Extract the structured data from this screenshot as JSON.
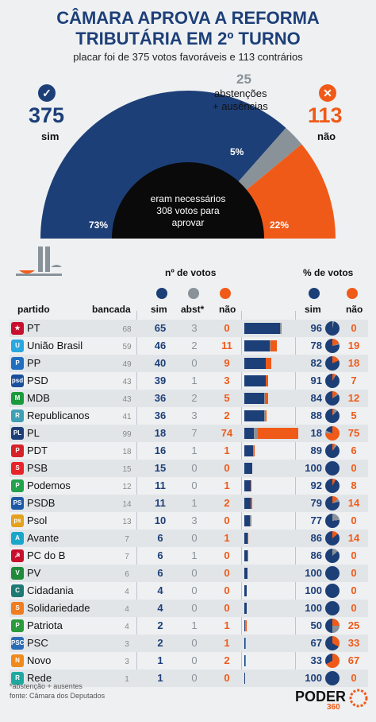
{
  "header": {
    "title_line1": "CÂMARA APROVA A REFORMA",
    "title_line2": "TRIBUTÁRIA EM 2º TURNO",
    "subtitle": "placar foi de 375 votos favoráveis e 113 contrários"
  },
  "summary": {
    "sim_count": "375",
    "sim_label": "sim",
    "nao_count": "113",
    "nao_label": "não",
    "abs_count": "25",
    "abs_label1": "abstenções",
    "abs_label2": "+ ausências",
    "check_icon": "✓",
    "x_icon": "✕",
    "center_text1": "eram necessários",
    "center_text2": "308 votos para",
    "center_text3": "aprovar",
    "pct_sim": "73%",
    "pct_abs": "5%",
    "pct_nao": "22%"
  },
  "colors": {
    "sim": "#1d3f78",
    "abs": "#8a9299",
    "nao": "#f05a18",
    "needed": "#0a0a0a"
  },
  "table": {
    "votes_header": "nº de votos",
    "pct_header": "% de votos",
    "col_party": "partido",
    "col_seats": "bancada",
    "col_sim": "sim",
    "col_abs": "abst*",
    "col_nao": "não",
    "col_psim": "sim",
    "col_pnao": "não"
  },
  "chart_data": {
    "type": "table",
    "gauge": {
      "sim": 375,
      "abstencoes_ausencias": 25,
      "nao": 113,
      "necessarios": 308,
      "pct": {
        "sim": 73,
        "abst": 5,
        "nao": 22
      }
    },
    "rows": [
      {
        "party": "PT",
        "seats": 68,
        "sim": 65,
        "abs": 3,
        "nao": 0,
        "psim": 96,
        "pnao": 0,
        "logo": "#c8102e",
        "logo_text": "★"
      },
      {
        "party": "União Brasil",
        "seats": 59,
        "sim": 46,
        "abs": 2,
        "nao": 11,
        "psim": 78,
        "pnao": 19,
        "logo": "#2aa7df",
        "logo_text": "U"
      },
      {
        "party": "PP",
        "seats": 49,
        "sim": 40,
        "abs": 0,
        "nao": 9,
        "psim": 82,
        "pnao": 18,
        "logo": "#1f6ebf",
        "logo_text": "P"
      },
      {
        "party": "PSD",
        "seats": 43,
        "sim": 39,
        "abs": 1,
        "nao": 3,
        "psim": 91,
        "pnao": 7,
        "logo": "#1b4f9c",
        "logo_text": "psd"
      },
      {
        "party": "MDB",
        "seats": 43,
        "sim": 36,
        "abs": 2,
        "nao": 5,
        "psim": 84,
        "pnao": 12,
        "logo": "#1a9a3c",
        "logo_text": "M"
      },
      {
        "party": "Republicanos",
        "seats": 41,
        "sim": 36,
        "abs": 3,
        "nao": 2,
        "psim": 88,
        "pnao": 5,
        "logo": "#3fa0b5",
        "logo_text": "R"
      },
      {
        "party": "PL",
        "seats": 99,
        "sim": 18,
        "abs": 7,
        "nao": 74,
        "psim": 18,
        "pnao": 75,
        "logo": "#1d3f78",
        "logo_text": "PL"
      },
      {
        "party": "PDT",
        "seats": 18,
        "sim": 16,
        "abs": 1,
        "nao": 1,
        "psim": 89,
        "pnao": 6,
        "logo": "#d6232a",
        "logo_text": "P"
      },
      {
        "party": "PSB",
        "seats": 15,
        "sim": 15,
        "abs": 0,
        "nao": 0,
        "psim": 100,
        "pnao": 0,
        "logo": "#e8232a",
        "logo_text": "S"
      },
      {
        "party": "Podemos",
        "seats": 12,
        "sim": 11,
        "abs": 0,
        "nao": 1,
        "psim": 92,
        "pnao": 8,
        "logo": "#23a24d",
        "logo_text": "P"
      },
      {
        "party": "PSDB",
        "seats": 14,
        "sim": 11,
        "abs": 1,
        "nao": 2,
        "psim": 79,
        "pnao": 14,
        "logo": "#1c5aa6",
        "logo_text": "PS"
      },
      {
        "party": "Psol",
        "seats": 13,
        "sim": 10,
        "abs": 3,
        "nao": 0,
        "psim": 77,
        "pnao": 0,
        "logo": "#e4a11b",
        "logo_text": "ps"
      },
      {
        "party": "Avante",
        "seats": 7,
        "sim": 6,
        "abs": 0,
        "nao": 1,
        "psim": 86,
        "pnao": 14,
        "logo": "#18a6c9",
        "logo_text": "A"
      },
      {
        "party": "PC do B",
        "seats": 7,
        "sim": 6,
        "abs": 1,
        "nao": 0,
        "psim": 86,
        "pnao": 0,
        "logo": "#c8102e",
        "logo_text": "☭"
      },
      {
        "party": "PV",
        "seats": 6,
        "sim": 6,
        "abs": 0,
        "nao": 0,
        "psim": 100,
        "pnao": 0,
        "logo": "#1e8a3a",
        "logo_text": "V"
      },
      {
        "party": "Cidadania",
        "seats": 4,
        "sim": 4,
        "abs": 0,
        "nao": 0,
        "psim": 100,
        "pnao": 0,
        "logo": "#1f7a74",
        "logo_text": "C"
      },
      {
        "party": "Solidariedade",
        "seats": 4,
        "sim": 4,
        "abs": 0,
        "nao": 0,
        "psim": 100,
        "pnao": 0,
        "logo": "#f07c1d",
        "logo_text": "S"
      },
      {
        "party": "Patriota",
        "seats": 4,
        "sim": 2,
        "abs": 1,
        "nao": 1,
        "psim": 50,
        "pnao": 25,
        "logo": "#2b9a3c",
        "logo_text": "P"
      },
      {
        "party": "PSC",
        "seats": 3,
        "sim": 2,
        "abs": 0,
        "nao": 1,
        "psim": 67,
        "pnao": 33,
        "logo": "#2a6db5",
        "logo_text": "PSC"
      },
      {
        "party": "Novo",
        "seats": 3,
        "sim": 1,
        "abs": 0,
        "nao": 2,
        "psim": 33,
        "pnao": 67,
        "logo": "#f08a1c",
        "logo_text": "N"
      },
      {
        "party": "Rede",
        "seats": 1,
        "sim": 1,
        "abs": 0,
        "nao": 0,
        "psim": 100,
        "pnao": 0,
        "logo": "#1ea8a0",
        "logo_text": "R"
      }
    ]
  },
  "footer": {
    "note": "*abstenção + ausentes",
    "source": "fonte: Câmara dos Deputados",
    "brand": "PODER",
    "brand_sub": "360"
  }
}
